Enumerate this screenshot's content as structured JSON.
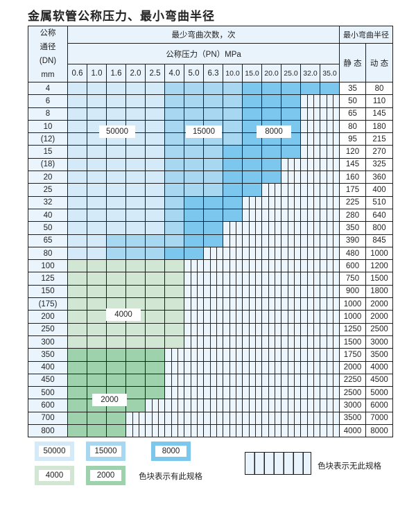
{
  "title": "金属软管公称压力、最小弯曲半径",
  "header": {
    "dn_label": [
      "公称",
      "通径",
      "(DN)",
      "mm"
    ],
    "cycles_label": "最少弯曲次数，次",
    "pressure_label": "公称压力（PN）MPa",
    "radius_label": "最小弯曲半径",
    "static_label": "静 态",
    "dynamic_label": "动 态",
    "pressures": [
      "0.6",
      "1.0",
      "1.6",
      "2.0",
      "2.5",
      "4.0",
      "5.0",
      "6.3",
      "10.0",
      "15.0",
      "20.0",
      "25.0",
      "32.0",
      "35.0"
    ]
  },
  "codes": {
    "L": 50000,
    "M": 15000,
    "D": 8000,
    "G": 4000,
    "H": 2000,
    "X": null
  },
  "colors": {
    "L": "#d4eaf8",
    "M": "#a8d7f2",
    "D": "#7cc7ee",
    "G": "#d2e7d3",
    "H": "#9ed2ad"
  },
  "rows": [
    {
      "dn": "4",
      "static": "35",
      "dynamic": "80",
      "cells": "LLLLLMMMMDDDDD"
    },
    {
      "dn": "6",
      "static": "50",
      "dynamic": "110",
      "cells": "LLLLLMMMMDDDXX"
    },
    {
      "dn": "8",
      "static": "65",
      "dynamic": "145",
      "cells": "LLLLLMMMMDDDXX"
    },
    {
      "dn": "10",
      "static": "80",
      "dynamic": "180",
      "cells": "LLLLLMMMMDDDXX"
    },
    {
      "dn": "(12)",
      "static": "95",
      "dynamic": "215",
      "cells": "LLLLLMMMMDDDXX"
    },
    {
      "dn": "15",
      "static": "120",
      "dynamic": "270",
      "cells": "LLLLLMMMDDDDXX"
    },
    {
      "dn": "(18)",
      "static": "145",
      "dynamic": "325",
      "cells": "LLLLLMMMDDDXXX"
    },
    {
      "dn": "20",
      "static": "160",
      "dynamic": "360",
      "cells": "LLLLLMMMDDDXXX"
    },
    {
      "dn": "25",
      "static": "175",
      "dynamic": "400",
      "cells": "LLLLLMMMDDXXXX"
    },
    {
      "dn": "32",
      "static": "225",
      "dynamic": "510",
      "cells": "LLLLLMDDDXXXXX"
    },
    {
      "dn": "40",
      "static": "280",
      "dynamic": "640",
      "cells": "LLLLLMDDDXXXXX"
    },
    {
      "dn": "50",
      "static": "350",
      "dynamic": "800",
      "cells": "LLLLLMDDXXXXXX"
    },
    {
      "dn": "65",
      "static": "390",
      "dynamic": "845",
      "cells": "LLMMMMDDXXXXXX"
    },
    {
      "dn": "80",
      "static": "480",
      "dynamic": "1000",
      "cells": "LLMMMDDXXXXXXX"
    },
    {
      "dn": "100",
      "static": "600",
      "dynamic": "1200",
      "cells": "GGGGGGXXXXXXXX"
    },
    {
      "dn": "125",
      "static": "750",
      "dynamic": "1500",
      "cells": "GGGGGGXXXXXXXX"
    },
    {
      "dn": "150",
      "static": "900",
      "dynamic": "1800",
      "cells": "GGGGGGXXXXXXXX"
    },
    {
      "dn": "(175)",
      "static": "1000",
      "dynamic": "2000",
      "cells": "GGGGGGXXXXXXXX"
    },
    {
      "dn": "200",
      "static": "1000",
      "dynamic": "2000",
      "cells": "GGGGGGXXXXXXXX"
    },
    {
      "dn": "250",
      "static": "1250",
      "dynamic": "2500",
      "cells": "GGGGGGXXXXXXXX"
    },
    {
      "dn": "300",
      "static": "1500",
      "dynamic": "3000",
      "cells": "GGGGGGXXXXXXXX"
    },
    {
      "dn": "350",
      "static": "1750",
      "dynamic": "3500",
      "cells": "HHHHHXXXXXXXXX"
    },
    {
      "dn": "400",
      "static": "2000",
      "dynamic": "4000",
      "cells": "HHHHHXXXXXXXXX"
    },
    {
      "dn": "450",
      "static": "2250",
      "dynamic": "4500",
      "cells": "HHHHHXXXXXXXXX"
    },
    {
      "dn": "500",
      "static": "2500",
      "dynamic": "5000",
      "cells": "HHHHHXXXXXXXXX"
    },
    {
      "dn": "600",
      "static": "3000",
      "dynamic": "6000",
      "cells": "HHHHXXXXXXXXXX"
    },
    {
      "dn": "700",
      "static": "3500",
      "dynamic": "7000",
      "cells": "HHHXXXXXXXXXXX"
    },
    {
      "dn": "800",
      "static": "4000",
      "dynamic": "8000",
      "cells": "HHHXXXXXXXXXXX"
    }
  ],
  "region_labels": {
    "L": "50000",
    "M": "15000",
    "D": "8000",
    "G": "4000",
    "H": "2000"
  },
  "legend": {
    "items": [
      "50000",
      "15000",
      "8000",
      "4000",
      "2000"
    ],
    "available_text": "色块表示有此规格",
    "unavailable_text": "色块表示无此规格"
  }
}
